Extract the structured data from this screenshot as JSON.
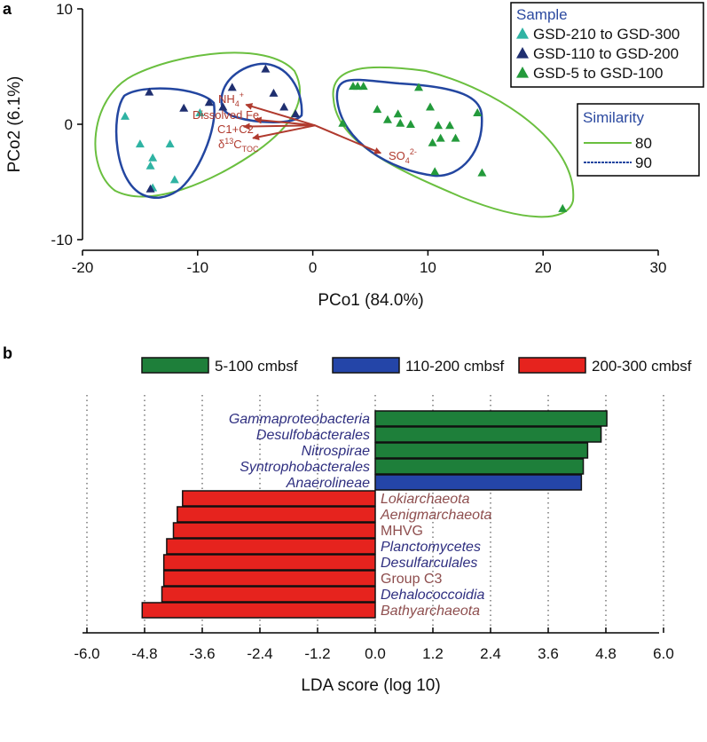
{
  "colors": {
    "teal": "#2fb3a3",
    "navy": "#1f2f70",
    "green": "#239a3b",
    "hull80": "#6abf3f",
    "hull90": "#2346a0",
    "arrow": "#b03a2e",
    "bar_green": "#1e7f3a",
    "bar_blue": "#2445a8",
    "bar_red": "#e6231e",
    "label_bacteria": "#2f2f80",
    "label_archaea": "#8e4e4e"
  },
  "chart_data": [
    {
      "type": "scatter",
      "panel_label": "a",
      "xlabel": "PCo1 (84.0%)",
      "ylabel": "PCo2 (6.1%)",
      "xlim": [
        -20,
        30
      ],
      "ylim": [
        -10,
        10
      ],
      "xticks": [
        "-20",
        "-10",
        "0",
        "10",
        "20",
        "30"
      ],
      "yticks": [
        "10",
        "0",
        "-10"
      ],
      "legend_sample": {
        "title": "Sample",
        "entries": [
          "GSD-210 to GSD-300",
          "GSD-110 to GSD-200",
          "GSD-5 to GSD-100"
        ]
      },
      "legend_similarity": {
        "title": "Similarity",
        "entries": [
          "80",
          "90"
        ]
      },
      "series": [
        {
          "name": "GSD-210 to GSD-300",
          "color_key": "teal",
          "points": [
            [
              -16.3,
              0.7
            ],
            [
              -15.0,
              -1.7
            ],
            [
              -12.4,
              -1.7
            ],
            [
              -13.9,
              -2.9
            ],
            [
              -14.1,
              -3.6
            ],
            [
              -12.0,
              -4.8
            ],
            [
              -13.9,
              -5.5
            ],
            [
              -9.8,
              1.0
            ]
          ]
        },
        {
          "name": "GSD-110 to GSD-200",
          "color_key": "navy",
          "points": [
            [
              -14.2,
              2.8
            ],
            [
              -11.2,
              1.4
            ],
            [
              -9.0,
              1.9
            ],
            [
              -7.8,
              1.5
            ],
            [
              -7.0,
              3.2
            ],
            [
              -4.1,
              4.8
            ],
            [
              -3.4,
              2.7
            ],
            [
              -2.5,
              1.5
            ],
            [
              -1.5,
              0.9
            ],
            [
              -14.1,
              -5.6
            ]
          ]
        },
        {
          "name": "GSD-5 to GSD-100",
          "color_key": "green",
          "points": [
            [
              3.5,
              3.3
            ],
            [
              3.9,
              3.3
            ],
            [
              4.4,
              3.3
            ],
            [
              9.2,
              3.2
            ],
            [
              2.6,
              0.1
            ],
            [
              5.6,
              1.3
            ],
            [
              6.5,
              0.4
            ],
            [
              7.4,
              0.9
            ],
            [
              7.6,
              0.1
            ],
            [
              8.5,
              0.0
            ],
            [
              10.2,
              1.5
            ],
            [
              10.9,
              -0.1
            ],
            [
              11.9,
              -0.1
            ],
            [
              11.1,
              -1.2
            ],
            [
              10.4,
              -1.6
            ],
            [
              12.4,
              -1.2
            ],
            [
              14.3,
              1.0
            ],
            [
              10.6,
              -4.1
            ],
            [
              14.7,
              -4.2
            ],
            [
              21.7,
              -7.3
            ]
          ]
        }
      ],
      "loadings": [
        {
          "label": "NH",
          "sub": "4",
          "sup": "+",
          "x": -5.8,
          "y": 1.7
        },
        {
          "label": "Dissolved Fe",
          "sub": "",
          "sup": "",
          "x": -5.0,
          "y": 0.4
        },
        {
          "label": "C1+C2",
          "sub": "",
          "sup": "",
          "x": -6.0,
          "y": -0.2
        },
        {
          "label": "δ",
          "sup13": "13",
          "main": "C",
          "sub": "TOC",
          "x": -5.2,
          "y": -1.2
        },
        {
          "label": "SO",
          "sub": "4",
          "sup": "2-",
          "x": 5.9,
          "y": -2.5
        }
      ]
    },
    {
      "type": "bar",
      "orientation": "horizontal",
      "panel_label": "b",
      "xlabel": "LDA score (log 10)",
      "xlim": [
        -6.0,
        6.0
      ],
      "xticks": [
        "-6.0",
        "-4.8",
        "-3.6",
        "-2.4",
        "-1.2",
        "0.0",
        "1.2",
        "2.4",
        "3.6",
        "4.8",
        "6.0"
      ],
      "legend": [
        {
          "label": "5-100 cmbsf",
          "color_key": "bar_green"
        },
        {
          "label": "110-200 cmbsf",
          "color_key": "bar_blue"
        },
        {
          "label": "200-300 cmbsf",
          "color_key": "bar_red"
        }
      ],
      "bars": [
        {
          "taxon": "Gammaproteobacteria",
          "value": 4.82,
          "group": "bar_green",
          "label_color": "label_bacteria",
          "italic": true
        },
        {
          "taxon": "Desulfobacterales",
          "value": 4.7,
          "group": "bar_green",
          "label_color": "label_bacteria",
          "italic": true
        },
        {
          "taxon": "Nitrospirae",
          "value": 4.42,
          "group": "bar_green",
          "label_color": "label_bacteria",
          "italic": true
        },
        {
          "taxon": "Syntrophobacterales",
          "value": 4.33,
          "group": "bar_green",
          "label_color": "label_bacteria",
          "italic": true
        },
        {
          "taxon": "Anaerolineae",
          "value": 4.29,
          "group": "bar_blue",
          "label_color": "label_bacteria",
          "italic": true
        },
        {
          "taxon": "Lokiarchaeota",
          "value": -4.01,
          "group": "bar_red",
          "label_color": "label_archaea",
          "italic": true
        },
        {
          "taxon": "Aenigmarchaeota",
          "value": -4.12,
          "group": "bar_red",
          "label_color": "label_archaea",
          "italic": true
        },
        {
          "taxon": "MHVG",
          "value": -4.2,
          "group": "bar_red",
          "label_color": "label_archaea",
          "italic": false
        },
        {
          "taxon": "Planctomycetes",
          "value": -4.34,
          "group": "bar_red",
          "label_color": "label_bacteria",
          "italic": true
        },
        {
          "taxon": "Desulfarculales",
          "value": -4.4,
          "group": "bar_red",
          "label_color": "label_bacteria",
          "italic": true
        },
        {
          "taxon": "Group C3",
          "value": -4.4,
          "group": "bar_red",
          "label_color": "label_archaea",
          "italic": false
        },
        {
          "taxon": "Dehalococcoidia",
          "value": -4.44,
          "group": "bar_red",
          "label_color": "label_bacteria",
          "italic": true
        },
        {
          "taxon": "Bathyarchaeota",
          "value": -4.85,
          "group": "bar_red",
          "label_color": "label_archaea",
          "italic": true
        }
      ]
    }
  ]
}
